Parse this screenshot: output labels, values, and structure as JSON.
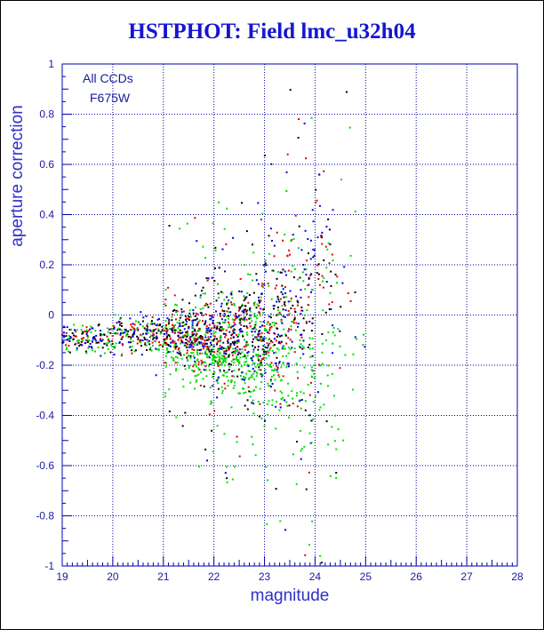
{
  "chart_data": {
    "type": "scatter",
    "title": "HSTPHOT: Field lmc_u32h04",
    "xlabel": "magnitude",
    "ylabel": "aperture correction",
    "xlim": [
      19,
      28
    ],
    "ylim": [
      -1,
      1
    ],
    "x_ticks": [
      "19",
      "20",
      "21",
      "22",
      "23",
      "24",
      "25",
      "26",
      "27",
      "28"
    ],
    "y_ticks": [
      "-1",
      "-0.8",
      "-0.6",
      "-0.4",
      "-0.2",
      "0",
      "0.2",
      "0.4",
      "0.6",
      "0.8",
      "1"
    ],
    "grid": true,
    "annotations": [
      "All CCDs",
      "F675W"
    ],
    "point_colors": [
      "#000000",
      "#e00000",
      "#00dd00",
      "#0000e0"
    ],
    "distribution": [
      {
        "x_range": [
          19.0,
          20.0
        ],
        "y_center": -0.09,
        "y_spread": 0.05,
        "count": 140
      },
      {
        "x_range": [
          20.0,
          21.0
        ],
        "y_center": -0.08,
        "y_spread": 0.06,
        "count": 180
      },
      {
        "x_range": [
          21.0,
          21.5
        ],
        "y_center": -0.09,
        "y_spread": 0.1,
        "count": 200
      },
      {
        "x_range": [
          21.5,
          22.0
        ],
        "y_center": -0.1,
        "y_spread": 0.13,
        "count": 280
      },
      {
        "x_range": [
          22.0,
          22.5
        ],
        "y_center": -0.11,
        "y_spread": 0.17,
        "count": 300
      },
      {
        "x_range": [
          22.5,
          23.0
        ],
        "y_center": -0.1,
        "y_spread": 0.22,
        "count": 280
      },
      {
        "x_range": [
          23.0,
          23.5
        ],
        "y_center": -0.08,
        "y_spread": 0.3,
        "count": 230
      },
      {
        "x_range": [
          23.5,
          24.0
        ],
        "y_center": -0.04,
        "y_spread": 0.4,
        "count": 170
      },
      {
        "x_range": [
          24.0,
          24.5
        ],
        "y_center": 0.0,
        "y_spread": 0.5,
        "count": 90
      },
      {
        "x_range": [
          24.5,
          25.0
        ],
        "y_center": 0.0,
        "y_spread": 0.55,
        "count": 20
      }
    ]
  }
}
